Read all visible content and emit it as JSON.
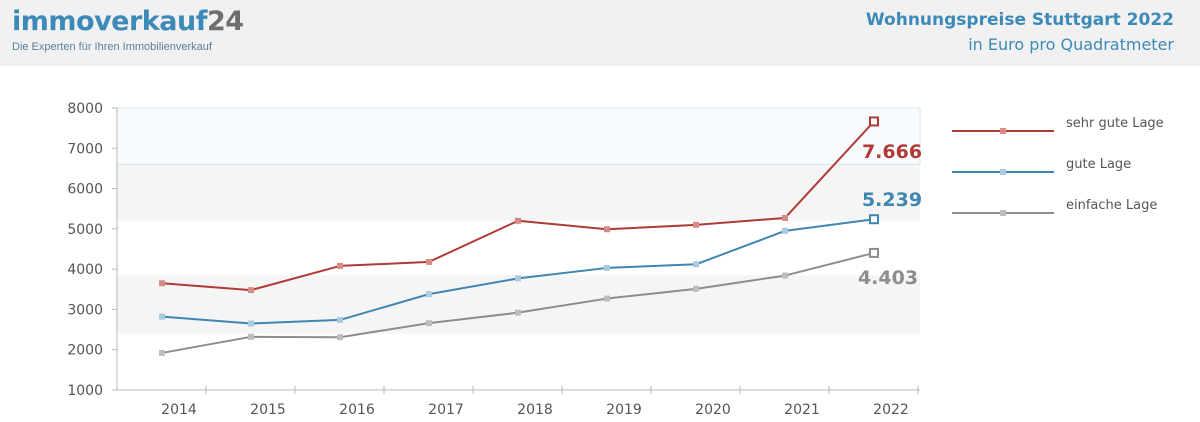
{
  "header": {
    "logo_text": "immoverkauf",
    "logo_number": "24",
    "logo_tagline": "Die Experten für Ihren Immobilienverkauf",
    "title": "Wohnungspreise Stuttgart 2022",
    "subtitle": "in Euro pro Quadratmeter"
  },
  "chart_data": {
    "type": "line",
    "title": "Wohnungspreise Stuttgart 2022",
    "subtitle": "in Euro pro Quadratmeter",
    "x": [
      "2014",
      "2015",
      "2016",
      "2017",
      "2018",
      "2019",
      "2020",
      "2021",
      "2022"
    ],
    "ylim": [
      1000,
      8000
    ],
    "yticks": [
      1000,
      2000,
      3000,
      4000,
      5000,
      6000,
      7000,
      8000
    ],
    "legend_position": "right",
    "series": [
      {
        "name": "sehr gute Lage",
        "color": "#b03a36",
        "marker_color": "#d88a86",
        "values": [
          3650,
          3480,
          4080,
          4180,
          5200,
          4990,
          5100,
          5270,
          7666
        ],
        "end_label": "7.666"
      },
      {
        "name": "gute Lage",
        "color": "#3f86b1",
        "marker_color": "#a9cbe0",
        "values": [
          2820,
          2650,
          2740,
          3380,
          3770,
          4030,
          4120,
          4950,
          5239
        ],
        "end_label": "5.239"
      },
      {
        "name": "einfache Lage",
        "color": "#8d8d8d",
        "marker_color": "#bdbdbd",
        "values": [
          1920,
          2320,
          2310,
          2660,
          2920,
          3270,
          3510,
          3840,
          4403
        ],
        "end_label": "4.403"
      }
    ]
  }
}
